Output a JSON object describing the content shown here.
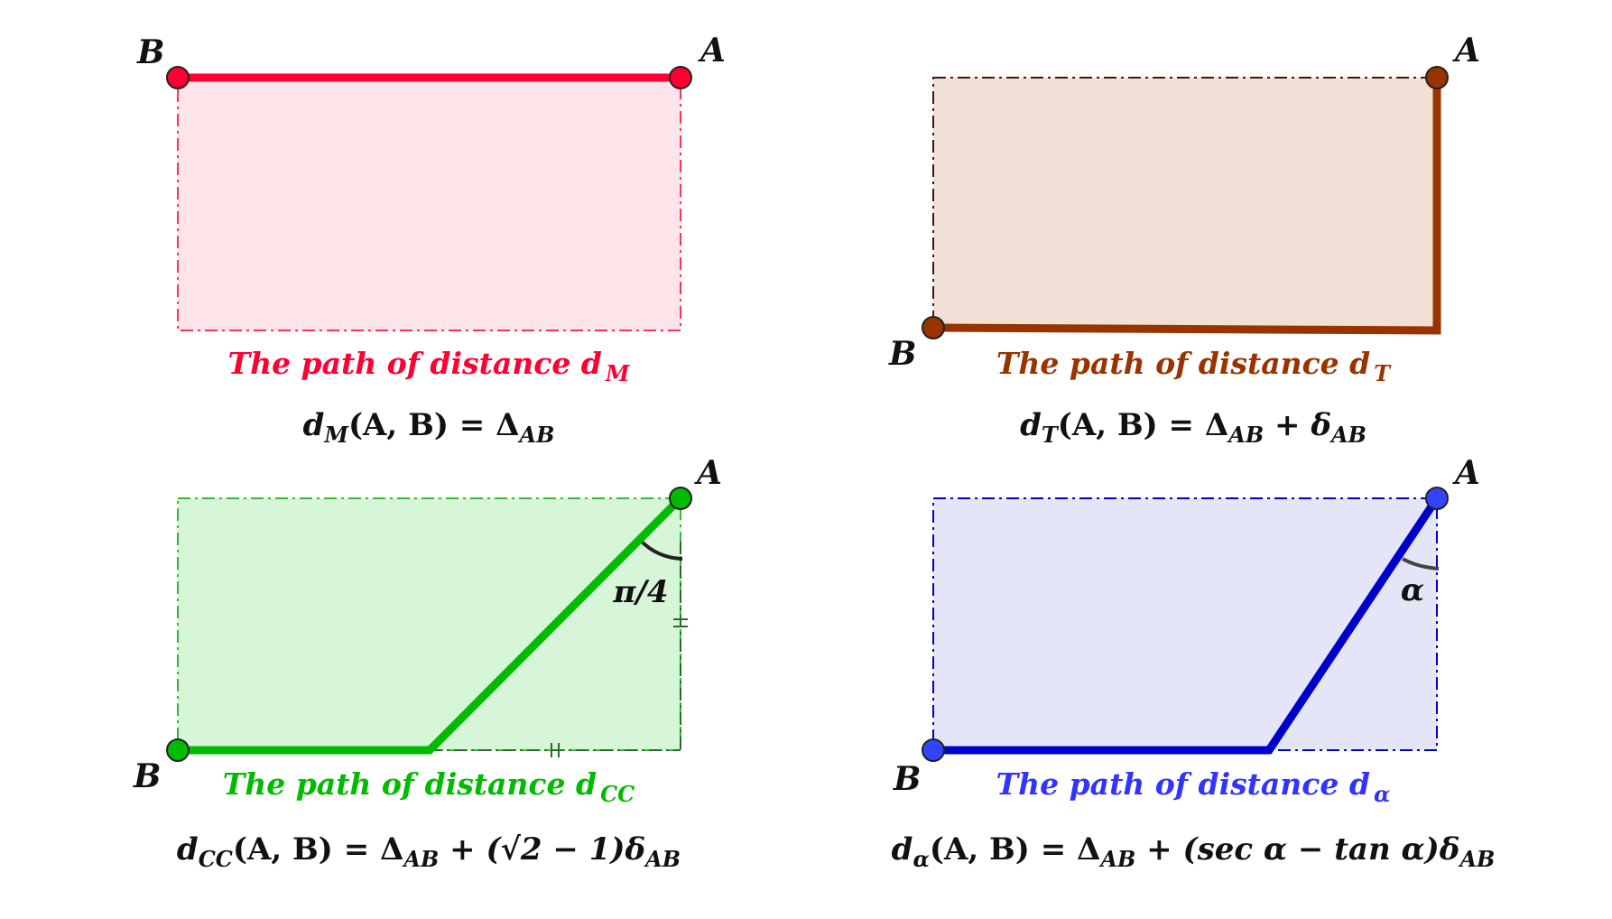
{
  "points": {
    "a_label": "A",
    "b_label": "B"
  },
  "panels": [
    {
      "id": "M",
      "color": "#ff0033",
      "fill": "#ffe4ea",
      "caption": "The path of distance d",
      "caption_sub": "M",
      "formula_lhs": "d",
      "formula_lhs_sub": "M",
      "formula_args": "(A, B) = Δ",
      "formula_sub": "AB",
      "formula_rest": ""
    },
    {
      "id": "T",
      "color": "#993300",
      "fill": "#f0e0d6",
      "caption": "The path of distance d",
      "caption_sub": "T",
      "formula_lhs": "d",
      "formula_lhs_sub": "T",
      "formula_args": "(A, B) = Δ",
      "formula_sub": "AB",
      "formula_rest": " + δ",
      "formula_rest_sub": "AB"
    },
    {
      "id": "CC",
      "color": "#00bb00",
      "fill": "#d7f5d7",
      "caption": "The path of distance d",
      "caption_sub": "CC",
      "angle_label": "π/4",
      "formula_lhs": "d",
      "formula_lhs_sub": "CC",
      "formula_args": "(A, B) = Δ",
      "formula_sub": "AB",
      "formula_rest": " + (√2 − 1)δ",
      "formula_rest_sub": "AB"
    },
    {
      "id": "alpha",
      "color": "#0000cc",
      "caption_color": "#3333ff",
      "fill": "#e4e6f7",
      "caption": "The path of distance d",
      "caption_sub": "α",
      "angle_label": "α",
      "formula_lhs": "d",
      "formula_lhs_sub": "α",
      "formula_args": "(A, B) = Δ",
      "formula_sub": "AB",
      "formula_rest": " + (sec α − tan α)δ",
      "formula_rest_sub": "AB"
    }
  ]
}
